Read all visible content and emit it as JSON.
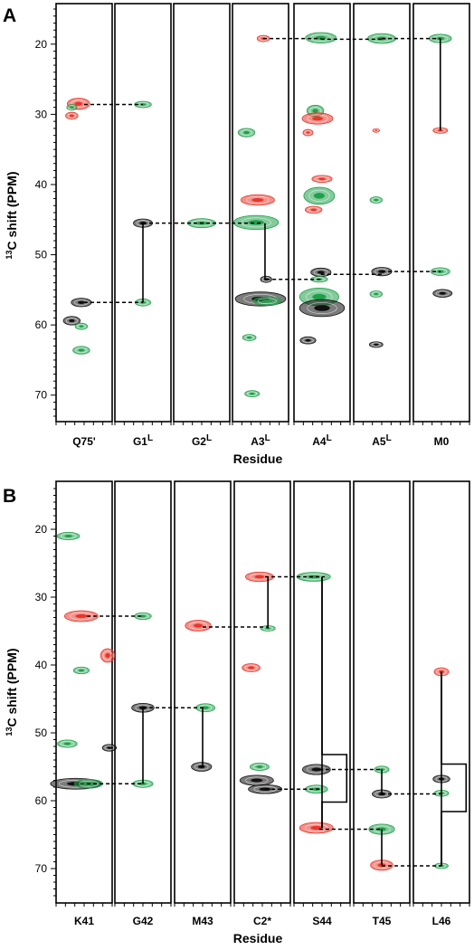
{
  "colors": {
    "red": "#e8362a",
    "green": "#1fa04a",
    "black": "#111111",
    "frame": "#000000"
  },
  "chart_data": [
    {
      "type": "scatter",
      "panel_label": "A",
      "ylabel_prefix": "13",
      "ylabel": "C shift (PPM)",
      "xlabel": "Residue",
      "yticks": [
        20,
        30,
        40,
        50,
        60,
        70
      ],
      "ylim": [
        15,
        73
      ],
      "y_axis": "inverted",
      "strips": [
        {
          "base": "Q75'",
          "sup": ""
        },
        {
          "base": "G1",
          "sup": "L"
        },
        {
          "base": "G2",
          "sup": "L"
        },
        {
          "base": "A3",
          "sup": "L"
        },
        {
          "base": "A4",
          "sup": "L"
        },
        {
          "base": "A5",
          "sup": "L"
        },
        {
          "base": "M0",
          "sup": ""
        }
      ],
      "peaks": [
        {
          "strip": 0,
          "pos": 0.4,
          "y": 28.5,
          "color": "red",
          "w": 0.4,
          "h": 1.6
        },
        {
          "strip": 0,
          "pos": 0.28,
          "y": 29.0,
          "color": "green",
          "w": 0.18,
          "h": 0.8
        },
        {
          "strip": 0,
          "pos": 0.28,
          "y": 30.2,
          "color": "red",
          "w": 0.22,
          "h": 1.0
        },
        {
          "strip": 0,
          "pos": 0.45,
          "y": 56.8,
          "color": "black",
          "w": 0.36,
          "h": 1.2
        },
        {
          "strip": 0,
          "pos": 0.28,
          "y": 59.4,
          "color": "black",
          "w": 0.3,
          "h": 1.2
        },
        {
          "strip": 0,
          "pos": 0.45,
          "y": 60.2,
          "color": "green",
          "w": 0.22,
          "h": 0.9
        },
        {
          "strip": 0,
          "pos": 0.45,
          "y": 63.6,
          "color": "green",
          "w": 0.3,
          "h": 1.1
        },
        {
          "strip": 1,
          "pos": 0.5,
          "y": 28.6,
          "color": "green",
          "w": 0.3,
          "h": 0.9
        },
        {
          "strip": 1,
          "pos": 0.5,
          "y": 45.5,
          "color": "black",
          "w": 0.34,
          "h": 1.2
        },
        {
          "strip": 1,
          "pos": 0.5,
          "y": 56.8,
          "color": "green",
          "w": 0.28,
          "h": 1.0
        },
        {
          "strip": 2,
          "pos": 0.5,
          "y": 45.5,
          "color": "green",
          "w": 0.5,
          "h": 1.3
        },
        {
          "strip": 3,
          "pos": 0.55,
          "y": 19.2,
          "color": "red",
          "w": 0.22,
          "h": 0.9
        },
        {
          "strip": 3,
          "pos": 0.25,
          "y": 32.6,
          "color": "green",
          "w": 0.3,
          "h": 1.2
        },
        {
          "strip": 3,
          "pos": 0.45,
          "y": 42.2,
          "color": "red",
          "w": 0.6,
          "h": 1.5
        },
        {
          "strip": 3,
          "pos": 0.42,
          "y": 45.4,
          "color": "green",
          "w": 0.8,
          "h": 2.0
        },
        {
          "strip": 3,
          "pos": 0.6,
          "y": 53.5,
          "color": "black",
          "w": 0.2,
          "h": 0.9
        },
        {
          "strip": 3,
          "pos": 0.5,
          "y": 56.3,
          "color": "black",
          "w": 0.9,
          "h": 2.0
        },
        {
          "strip": 3,
          "pos": 0.62,
          "y": 56.6,
          "color": "green",
          "w": 0.5,
          "h": 1.2
        },
        {
          "strip": 3,
          "pos": 0.3,
          "y": 61.8,
          "color": "green",
          "w": 0.24,
          "h": 0.9
        },
        {
          "strip": 3,
          "pos": 0.35,
          "y": 69.8,
          "color": "green",
          "w": 0.26,
          "h": 0.9
        },
        {
          "strip": 4,
          "pos": 0.48,
          "y": 19.1,
          "color": "green",
          "w": 0.55,
          "h": 1.5
        },
        {
          "strip": 4,
          "pos": 0.38,
          "y": 29.5,
          "color": "green",
          "w": 0.3,
          "h": 1.6
        },
        {
          "strip": 4,
          "pos": 0.42,
          "y": 30.6,
          "color": "red",
          "w": 0.55,
          "h": 1.6
        },
        {
          "strip": 4,
          "pos": 0.25,
          "y": 32.6,
          "color": "red",
          "w": 0.18,
          "h": 0.9
        },
        {
          "strip": 4,
          "pos": 0.5,
          "y": 39.2,
          "color": "red",
          "w": 0.36,
          "h": 1.0
        },
        {
          "strip": 4,
          "pos": 0.45,
          "y": 41.6,
          "color": "green",
          "w": 0.55,
          "h": 2.4
        },
        {
          "strip": 4,
          "pos": 0.35,
          "y": 43.6,
          "color": "red",
          "w": 0.3,
          "h": 1.0
        },
        {
          "strip": 4,
          "pos": 0.48,
          "y": 52.5,
          "color": "black",
          "w": 0.36,
          "h": 1.2
        },
        {
          "strip": 4,
          "pos": 0.45,
          "y": 53.5,
          "color": "green",
          "w": 0.3,
          "h": 0.8
        },
        {
          "strip": 4,
          "pos": 0.45,
          "y": 56.0,
          "color": "green",
          "w": 0.7,
          "h": 2.5
        },
        {
          "strip": 4,
          "pos": 0.5,
          "y": 57.6,
          "color": "black",
          "w": 0.8,
          "h": 2.4
        },
        {
          "strip": 4,
          "pos": 0.25,
          "y": 62.2,
          "color": "black",
          "w": 0.28,
          "h": 1.0
        },
        {
          "strip": 5,
          "pos": 0.5,
          "y": 19.2,
          "color": "green",
          "w": 0.5,
          "h": 1.4
        },
        {
          "strip": 5,
          "pos": 0.4,
          "y": 32.3,
          "color": "red",
          "w": 0.12,
          "h": 0.5
        },
        {
          "strip": 5,
          "pos": 0.4,
          "y": 42.2,
          "color": "green",
          "w": 0.22,
          "h": 0.9
        },
        {
          "strip": 5,
          "pos": 0.5,
          "y": 52.4,
          "color": "black",
          "w": 0.36,
          "h": 1.2
        },
        {
          "strip": 5,
          "pos": 0.4,
          "y": 55.6,
          "color": "green",
          "w": 0.22,
          "h": 0.9
        },
        {
          "strip": 5,
          "pos": 0.4,
          "y": 62.8,
          "color": "black",
          "w": 0.24,
          "h": 0.8
        },
        {
          "strip": 6,
          "pos": 0.48,
          "y": 19.2,
          "color": "green",
          "w": 0.4,
          "h": 1.2
        },
        {
          "strip": 6,
          "pos": 0.48,
          "y": 32.3,
          "color": "red",
          "w": 0.26,
          "h": 0.8
        },
        {
          "strip": 6,
          "pos": 0.48,
          "y": 52.4,
          "color": "green",
          "w": 0.34,
          "h": 1.1
        },
        {
          "strip": 6,
          "pos": 0.52,
          "y": 55.5,
          "color": "black",
          "w": 0.34,
          "h": 1.1
        }
      ],
      "dashed": [
        {
          "from": [
            0,
            0.5
          ],
          "to": [
            1,
            0.5
          ],
          "y": 28.6
        },
        {
          "from": [
            1,
            0.5
          ],
          "to": [
            3,
            0.55
          ],
          "y": 45.5
        },
        {
          "from": [
            0,
            0.5
          ],
          "to": [
            1,
            0.5
          ],
          "y": 56.8
        },
        {
          "from": [
            3,
            0.55
          ],
          "to": [
            4,
            0.48
          ],
          "y": 19.2
        },
        {
          "from": [
            4,
            0.48
          ],
          "to": [
            5,
            0.5
          ],
          "y": 19.3
        },
        {
          "from": [
            5,
            0.5
          ],
          "to": [
            6,
            0.48
          ],
          "y": 19.2
        },
        {
          "from": [
            3,
            0.6
          ],
          "to": [
            4,
            0.48
          ],
          "y": 53.5
        },
        {
          "from": [
            4,
            0.48
          ],
          "to": [
            5,
            0.5
          ],
          "y": 52.8
        },
        {
          "from": [
            5,
            0.5
          ],
          "to": [
            6,
            0.48
          ],
          "y": 52.4
        }
      ],
      "solid": [
        {
          "strip": 1,
          "pos": 0.5,
          "y1": 45.5,
          "y2": 56.8
        },
        {
          "strip": 3,
          "pos": 0.58,
          "y1": 45.5,
          "y2": 53.5
        },
        {
          "strip": 6,
          "pos": 0.48,
          "y1": 19.2,
          "y2": 32.3
        }
      ],
      "brackets": []
    },
    {
      "type": "scatter",
      "panel_label": "B",
      "ylabel_prefix": "13",
      "ylabel": "C shift (PPM)",
      "xlabel": "Residue",
      "yticks": [
        20,
        30,
        40,
        50,
        60,
        70
      ],
      "ylim": [
        14,
        74
      ],
      "y_axis": "inverted",
      "strips": [
        {
          "base": "K41",
          "sup": ""
        },
        {
          "base": "G42",
          "sup": ""
        },
        {
          "base": "M43",
          "sup": ""
        },
        {
          "base": "C2*",
          "sup": ""
        },
        {
          "base": "S44",
          "sup": ""
        },
        {
          "base": "T45",
          "sup": ""
        },
        {
          "base": "L46",
          "sup": ""
        }
      ],
      "peaks": [
        {
          "strip": 0,
          "pos": 0.22,
          "y": 21.0,
          "color": "green",
          "w": 0.4,
          "h": 1.1
        },
        {
          "strip": 0,
          "pos": 0.45,
          "y": 32.8,
          "color": "red",
          "w": 0.6,
          "h": 1.6
        },
        {
          "strip": 0,
          "pos": 0.45,
          "y": 40.8,
          "color": "green",
          "w": 0.28,
          "h": 1.0
        },
        {
          "strip": 0,
          "pos": 0.92,
          "y": 38.6,
          "color": "red",
          "w": 0.25,
          "h": 2.0
        },
        {
          "strip": 0,
          "pos": 0.2,
          "y": 51.6,
          "color": "green",
          "w": 0.35,
          "h": 1.1
        },
        {
          "strip": 0,
          "pos": 0.95,
          "y": 52.2,
          "color": "black",
          "w": 0.25,
          "h": 1.0
        },
        {
          "strip": 0,
          "pos": 0.35,
          "y": 57.5,
          "color": "black",
          "w": 0.9,
          "h": 1.6
        },
        {
          "strip": 0,
          "pos": 0.58,
          "y": 57.5,
          "color": "green",
          "w": 0.5,
          "h": 1.3
        },
        {
          "strip": 1,
          "pos": 0.5,
          "y": 32.8,
          "color": "green",
          "w": 0.3,
          "h": 1.0
        },
        {
          "strip": 1,
          "pos": 0.5,
          "y": 46.3,
          "color": "black",
          "w": 0.4,
          "h": 1.3
        },
        {
          "strip": 1,
          "pos": 0.5,
          "y": 57.5,
          "color": "green",
          "w": 0.36,
          "h": 1.1
        },
        {
          "strip": 2,
          "pos": 0.42,
          "y": 34.2,
          "color": "red",
          "w": 0.46,
          "h": 1.6
        },
        {
          "strip": 2,
          "pos": 0.55,
          "y": 46.3,
          "color": "green",
          "w": 0.34,
          "h": 1.2
        },
        {
          "strip": 2,
          "pos": 0.48,
          "y": 55.0,
          "color": "black",
          "w": 0.36,
          "h": 1.3
        },
        {
          "strip": 3,
          "pos": 0.45,
          "y": 27.0,
          "color": "red",
          "w": 0.5,
          "h": 1.4
        },
        {
          "strip": 3,
          "pos": 0.6,
          "y": 34.6,
          "color": "green",
          "w": 0.26,
          "h": 0.8
        },
        {
          "strip": 3,
          "pos": 0.3,
          "y": 40.4,
          "color": "red",
          "w": 0.32,
          "h": 1.2
        },
        {
          "strip": 3,
          "pos": 0.45,
          "y": 55.0,
          "color": "green",
          "w": 0.34,
          "h": 1.1
        },
        {
          "strip": 3,
          "pos": 0.4,
          "y": 57.0,
          "color": "black",
          "w": 0.6,
          "h": 1.5
        },
        {
          "strip": 3,
          "pos": 0.55,
          "y": 58.3,
          "color": "black",
          "w": 0.6,
          "h": 1.3
        },
        {
          "strip": 4,
          "pos": 0.35,
          "y": 27.0,
          "color": "green",
          "w": 0.6,
          "h": 1.3
        },
        {
          "strip": 4,
          "pos": 0.4,
          "y": 55.4,
          "color": "black",
          "w": 0.5,
          "h": 1.5
        },
        {
          "strip": 4,
          "pos": 0.4,
          "y": 58.3,
          "color": "green",
          "w": 0.4,
          "h": 1.2
        },
        {
          "strip": 4,
          "pos": 0.4,
          "y": 64.0,
          "color": "red",
          "w": 0.6,
          "h": 1.6
        },
        {
          "strip": 5,
          "pos": 0.5,
          "y": 55.4,
          "color": "green",
          "w": 0.26,
          "h": 1.0
        },
        {
          "strip": 5,
          "pos": 0.5,
          "y": 59.0,
          "color": "black",
          "w": 0.34,
          "h": 1.2
        },
        {
          "strip": 5,
          "pos": 0.5,
          "y": 64.2,
          "color": "green",
          "w": 0.46,
          "h": 1.5
        },
        {
          "strip": 5,
          "pos": 0.5,
          "y": 69.5,
          "color": "red",
          "w": 0.4,
          "h": 1.5
        },
        {
          "strip": 6,
          "pos": 0.5,
          "y": 41.0,
          "color": "red",
          "w": 0.26,
          "h": 1.2
        },
        {
          "strip": 6,
          "pos": 0.5,
          "y": 56.8,
          "color": "black",
          "w": 0.3,
          "h": 1.1
        },
        {
          "strip": 6,
          "pos": 0.5,
          "y": 58.9,
          "color": "green",
          "w": 0.26,
          "h": 0.9
        },
        {
          "strip": 6,
          "pos": 0.5,
          "y": 69.6,
          "color": "green",
          "w": 0.24,
          "h": 0.8
        }
      ],
      "dashed": [
        {
          "from": [
            0,
            0.55
          ],
          "to": [
            1,
            0.5
          ],
          "y": 32.8
        },
        {
          "from": [
            0,
            0.55
          ],
          "to": [
            1,
            0.5
          ],
          "y": 57.5
        },
        {
          "from": [
            1,
            0.5
          ],
          "to": [
            2,
            0.52
          ],
          "y": 46.3
        },
        {
          "from": [
            2,
            0.5
          ],
          "to": [
            3,
            0.6
          ],
          "y": 34.4
        },
        {
          "from": [
            3,
            0.55
          ],
          "to": [
            4,
            0.55
          ],
          "y": 27.0
        },
        {
          "from": [
            3,
            0.55
          ],
          "to": [
            4,
            0.5
          ],
          "y": 58.3
        },
        {
          "from": [
            4,
            0.45
          ],
          "to": [
            5,
            0.5
          ],
          "y": 55.4
        },
        {
          "from": [
            4,
            0.45
          ],
          "to": [
            5,
            0.5
          ],
          "y": 64.2
        },
        {
          "from": [
            5,
            0.5
          ],
          "to": [
            6,
            0.5
          ],
          "y": 59.0
        },
        {
          "from": [
            5,
            0.5
          ],
          "to": [
            6,
            0.5
          ],
          "y": 69.6
        }
      ],
      "solid": [
        {
          "strip": 1,
          "pos": 0.5,
          "y1": 46.3,
          "y2": 57.5
        },
        {
          "strip": 2,
          "pos": 0.5,
          "y1": 46.3,
          "y2": 55.0
        },
        {
          "strip": 3,
          "pos": 0.6,
          "y1": 27.0,
          "y2": 34.6
        },
        {
          "strip": 4,
          "pos": 0.5,
          "y1": 27.0,
          "y2": 64.0
        },
        {
          "strip": 5,
          "pos": 0.5,
          "y1": 55.4,
          "y2": 59.0
        },
        {
          "strip": 5,
          "pos": 0.5,
          "y1": 64.2,
          "y2": 69.5
        },
        {
          "strip": 6,
          "pos": 0.5,
          "y1": 41.0,
          "y2": 69.6
        }
      ],
      "brackets": [
        {
          "strip": 4,
          "y1": 27.0,
          "ya": 53.2,
          "yb": 60.2,
          "y2": 64.0
        },
        {
          "strip": 6,
          "y1": 41.0,
          "ya": 54.6,
          "yb": 61.6,
          "y2": 69.6
        }
      ]
    }
  ]
}
